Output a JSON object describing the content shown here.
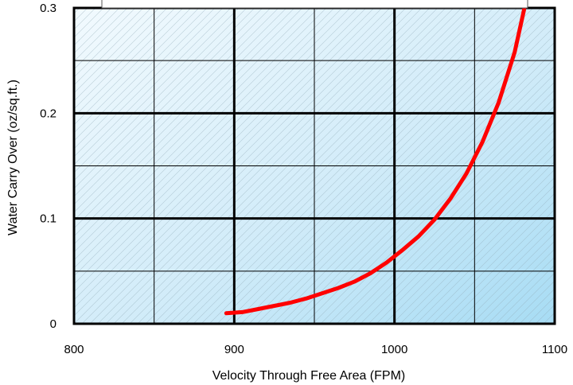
{
  "chart_data": {
    "type": "line",
    "xlabel": "Velocity Through Free Area (FPM)",
    "ylabel": "Water Carry Over (oz/sq.ft.)",
    "xlim": [
      800,
      1100
    ],
    "ylim": [
      0,
      0.3
    ],
    "x_ticks": [
      {
        "value": 800,
        "label": "800"
      },
      {
        "value": 900,
        "label": "900"
      },
      {
        "value": 1000,
        "label": "1000"
      },
      {
        "value": 1100,
        "label": "1100"
      }
    ],
    "y_ticks": [
      {
        "value": 0,
        "label": "0"
      },
      {
        "value": 0.1,
        "label": "0.1"
      },
      {
        "value": 0.2,
        "label": "0.2"
      },
      {
        "value": 0.3,
        "label": "0.3"
      }
    ],
    "major_grid_x": [
      900,
      1000
    ],
    "minor_grid_x": [
      850,
      950,
      1050
    ],
    "major_grid_y": [
      0.1,
      0.2
    ],
    "minor_grid_y": [
      0.05,
      0.15,
      0.25
    ],
    "grid": true,
    "background": "light-blue gradient with diagonal hatching",
    "series": [
      {
        "color": "#ff0000",
        "x": [
          895,
          905,
          915,
          925,
          935,
          945,
          955,
          965,
          975,
          985,
          995,
          1005,
          1015,
          1025,
          1035,
          1045,
          1055,
          1065,
          1075,
          1081
        ],
        "y": [
          0.01,
          0.011,
          0.014,
          0.017,
          0.02,
          0.024,
          0.029,
          0.034,
          0.04,
          0.048,
          0.058,
          0.07,
          0.083,
          0.099,
          0.119,
          0.143,
          0.173,
          0.21,
          0.258,
          0.299
        ]
      }
    ]
  }
}
